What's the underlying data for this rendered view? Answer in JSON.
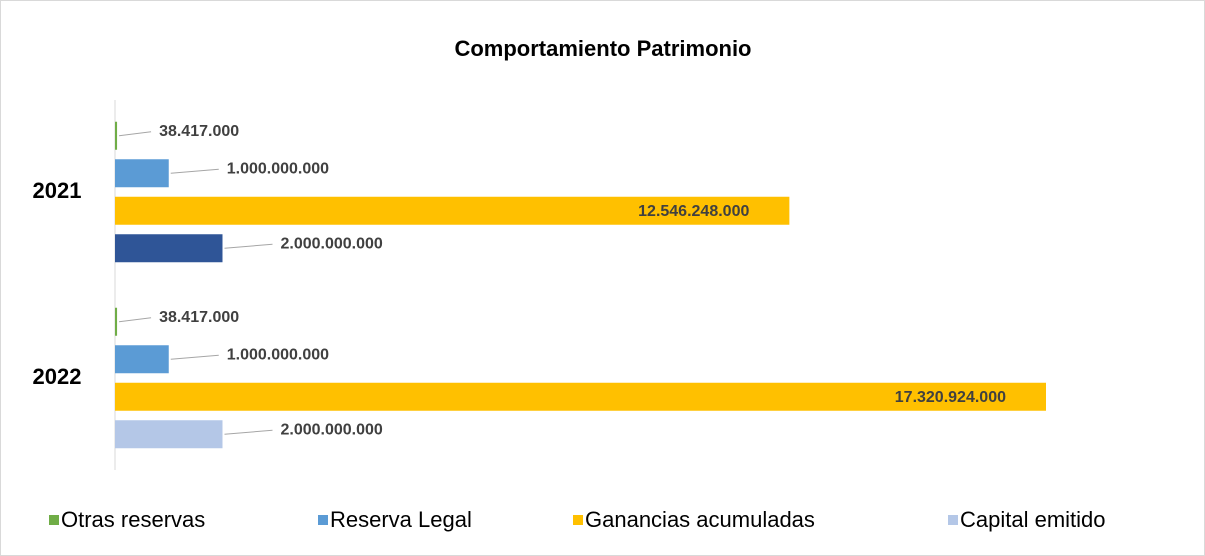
{
  "chart_data": {
    "type": "barh",
    "title": "Comportamiento Patrimonio",
    "categories": [
      "2021",
      "2022"
    ],
    "xlim": [
      0,
      20000000000
    ],
    "series": [
      {
        "name": "Otras reservas",
        "color": "#70ad47",
        "values": [
          38417000,
          38417000
        ],
        "value_labels": [
          "38.417.000",
          "38.417.000"
        ]
      },
      {
        "name": "Reserva Legal",
        "color": "#5b9bd5",
        "values": [
          1000000000,
          1000000000
        ],
        "value_labels": [
          "1.000.000.000",
          "1.000.000.000"
        ]
      },
      {
        "name": "Ganancias acumuladas",
        "color": "#ffc000",
        "values": [
          12546248000,
          17320924000
        ],
        "value_labels": [
          "12.546.248.000",
          "17.320.924.000"
        ]
      },
      {
        "name": "Capital emitido",
        "color": "#b4c7e7",
        "colors": [
          "#2f5597",
          "#b4c7e7"
        ],
        "values": [
          2000000000,
          2000000000
        ],
        "value_labels": [
          "2.000.000.000",
          "2.000.000.000"
        ]
      }
    ]
  }
}
